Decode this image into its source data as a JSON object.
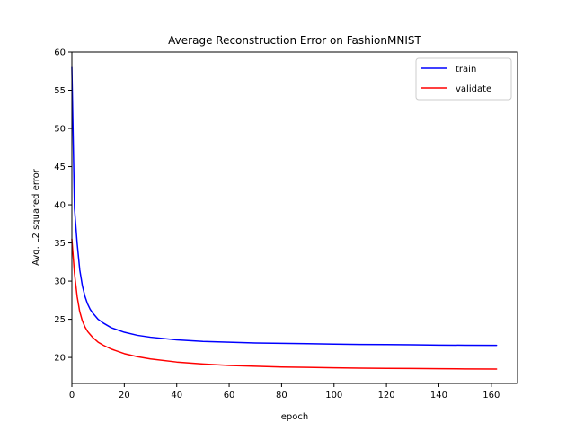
{
  "chart_data": {
    "type": "line",
    "title": "Average Reconstruction Error on FashionMNIST",
    "xlabel": "epoch",
    "ylabel": "Avg. L2 squared error",
    "xlim": [
      0,
      170
    ],
    "ylim": [
      16.6,
      60
    ],
    "xticks": [
      0,
      20,
      40,
      60,
      80,
      100,
      120,
      140,
      160
    ],
    "yticks": [
      20,
      25,
      30,
      35,
      40,
      45,
      50,
      55,
      60
    ],
    "grid": false,
    "legend_position": "top-right",
    "series": [
      {
        "name": "train",
        "color": "#0000ff",
        "points": [
          [
            0,
            58.0
          ],
          [
            1,
            39.5
          ],
          [
            2,
            35.0
          ],
          [
            3,
            31.5
          ],
          [
            4,
            29.4
          ],
          [
            5,
            28.0
          ],
          [
            6,
            27.0
          ],
          [
            7,
            26.3
          ],
          [
            8,
            25.8
          ],
          [
            10,
            25.0
          ],
          [
            12,
            24.5
          ],
          [
            15,
            23.9
          ],
          [
            20,
            23.3
          ],
          [
            25,
            22.9
          ],
          [
            30,
            22.65
          ],
          [
            40,
            22.3
          ],
          [
            50,
            22.1
          ],
          [
            60,
            22.0
          ],
          [
            70,
            21.9
          ],
          [
            80,
            21.85
          ],
          [
            90,
            21.8
          ],
          [
            100,
            21.75
          ],
          [
            110,
            21.7
          ],
          [
            120,
            21.68
          ],
          [
            130,
            21.65
          ],
          [
            140,
            21.62
          ],
          [
            150,
            21.6
          ],
          [
            162,
            21.58
          ]
        ]
      },
      {
        "name": "validate",
        "color": "#ff0000",
        "points": [
          [
            0,
            35.5
          ],
          [
            1,
            31.0
          ],
          [
            2,
            28.0
          ],
          [
            3,
            26.0
          ],
          [
            4,
            24.8
          ],
          [
            5,
            24.0
          ],
          [
            6,
            23.4
          ],
          [
            7,
            23.0
          ],
          [
            8,
            22.6
          ],
          [
            10,
            22.0
          ],
          [
            12,
            21.6
          ],
          [
            15,
            21.1
          ],
          [
            20,
            20.5
          ],
          [
            25,
            20.1
          ],
          [
            30,
            19.8
          ],
          [
            40,
            19.4
          ],
          [
            50,
            19.15
          ],
          [
            60,
            18.95
          ],
          [
            70,
            18.85
          ],
          [
            80,
            18.75
          ],
          [
            90,
            18.7
          ],
          [
            100,
            18.65
          ],
          [
            110,
            18.6
          ],
          [
            120,
            18.57
          ],
          [
            130,
            18.55
          ],
          [
            140,
            18.52
          ],
          [
            150,
            18.5
          ],
          [
            162,
            18.48
          ]
        ]
      }
    ]
  }
}
